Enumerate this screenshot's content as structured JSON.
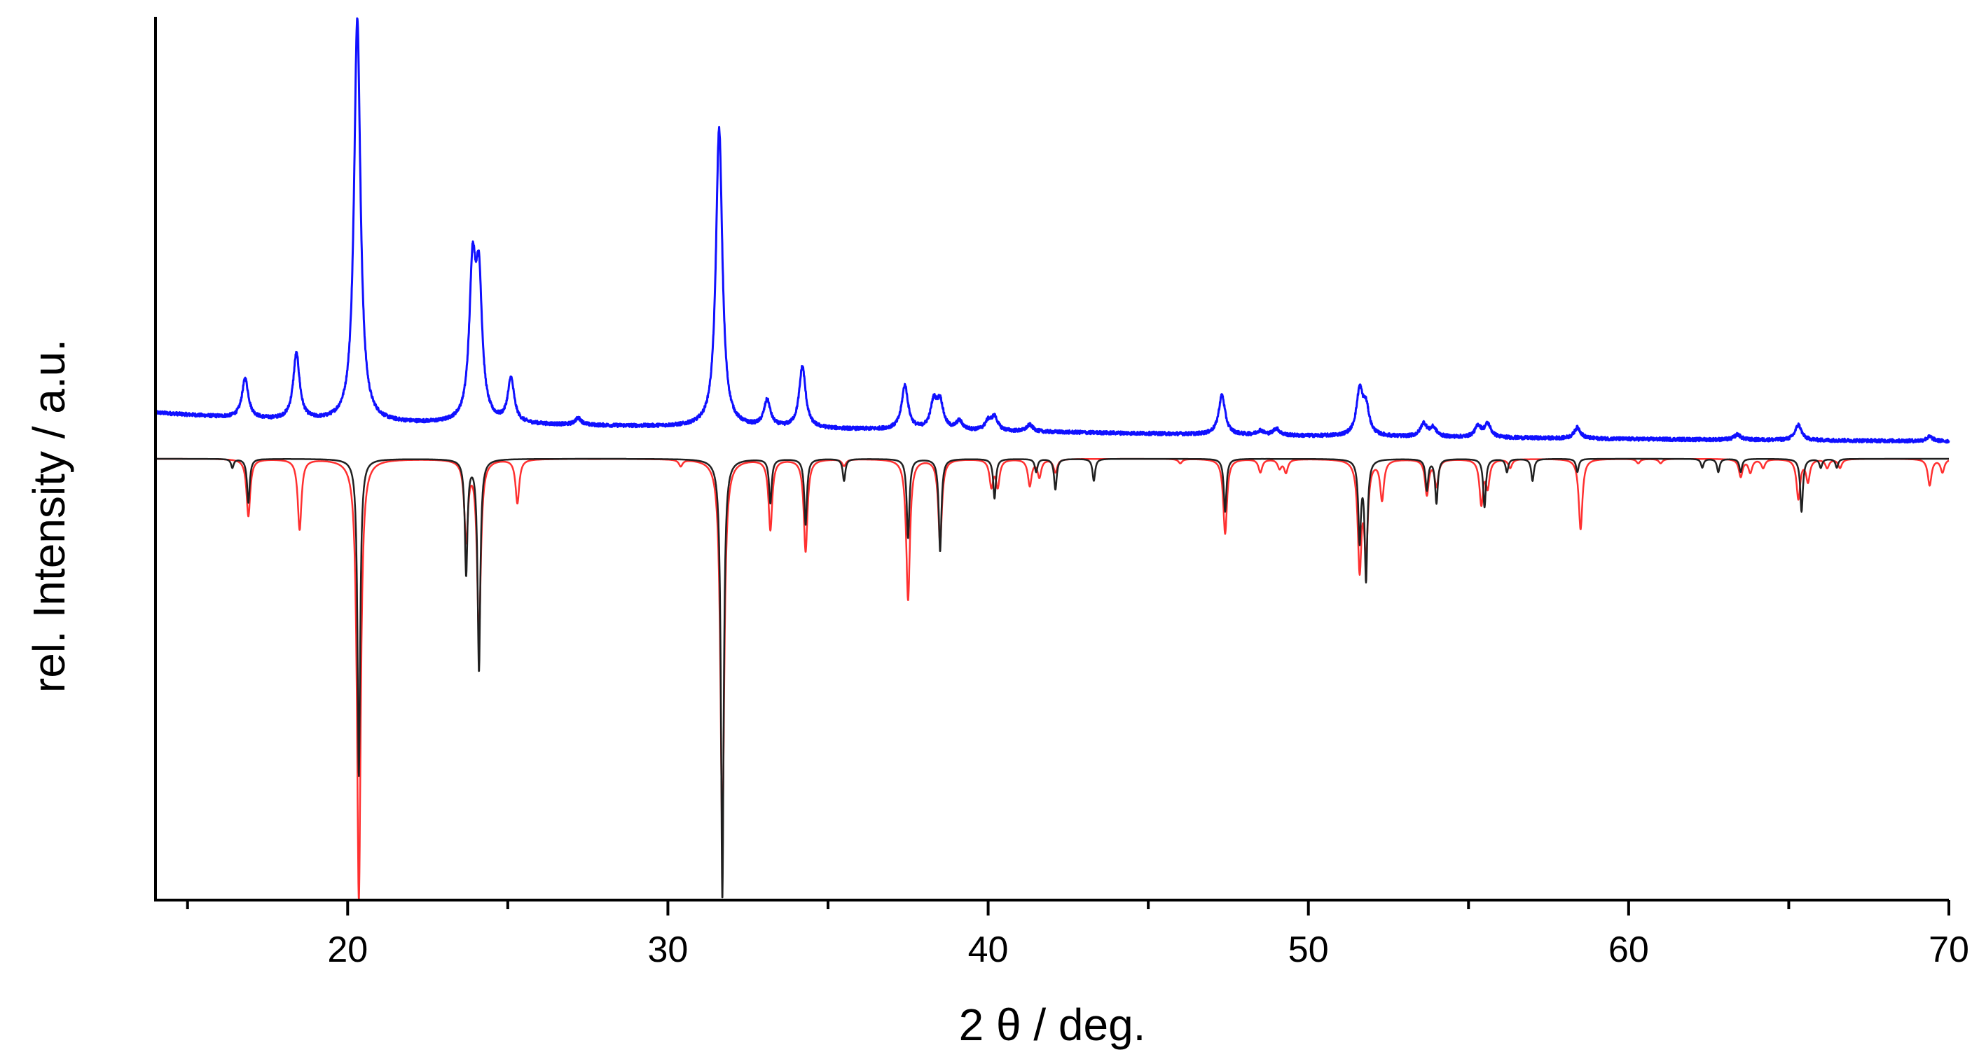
{
  "chart_data": {
    "type": "line",
    "xlabel": "2 θ / deg.",
    "ylabel": "rel. Intensity / a.u.",
    "xlim": [
      14,
      70
    ],
    "ylim": [
      -100,
      100
    ],
    "x_ticks": [
      20,
      30,
      40,
      50,
      60,
      70
    ],
    "x_minor_step": 5,
    "y_ticks": [],
    "grid": false,
    "legend": "none",
    "colors": {
      "measured": "#1010ff",
      "simulated_a": "#ff3030",
      "simulated_b": "#202020",
      "axis": "#000000"
    },
    "series": [
      {
        "line_color": "#1010ff",
        "baseline": [
          [
            14,
            10.5
          ],
          [
            17,
            9.0
          ],
          [
            20,
            8.2
          ],
          [
            25,
            7.8
          ],
          [
            30,
            7.3
          ],
          [
            40,
            6.3
          ],
          [
            50,
            5.2
          ],
          [
            60,
            4.5
          ],
          [
            70,
            4.0
          ]
        ],
        "peak_width": 0.12,
        "noise": 0.4,
        "peaks": [
          [
            16.8,
            9
          ],
          [
            18.4,
            15
          ],
          [
            20.3,
            92
          ],
          [
            23.9,
            33
          ],
          [
            24.1,
            30
          ],
          [
            25.1,
            10
          ],
          [
            27.2,
            1.5
          ],
          [
            31.6,
            68
          ],
          [
            33.1,
            6
          ],
          [
            34.2,
            14
          ],
          [
            37.4,
            10
          ],
          [
            38.3,
            6
          ],
          [
            38.5,
            6
          ],
          [
            39.1,
            2
          ],
          [
            40.0,
            2
          ],
          [
            40.2,
            3
          ],
          [
            41.3,
            1.5
          ],
          [
            47.3,
            9
          ],
          [
            48.5,
            1
          ],
          [
            49.0,
            1.5
          ],
          [
            51.6,
            10
          ],
          [
            51.8,
            6
          ],
          [
            53.6,
            3
          ],
          [
            53.9,
            2
          ],
          [
            55.3,
            2.5
          ],
          [
            55.6,
            3
          ],
          [
            58.4,
            2.5
          ],
          [
            63.4,
            1.2
          ],
          [
            65.3,
            3.5
          ],
          [
            69.4,
            1
          ]
        ]
      },
      {
        "line_color": "#ff3030",
        "baseline": [
          [
            14,
            0
          ],
          [
            70,
            0
          ]
        ],
        "peak_width": 0.07,
        "noise": 0,
        "peaks": [
          [
            16.9,
            -13
          ],
          [
            18.5,
            -16
          ],
          [
            20.35,
            -100
          ],
          [
            23.7,
            -18
          ],
          [
            24.1,
            -40
          ],
          [
            25.3,
            -10
          ],
          [
            30.4,
            -1.5
          ],
          [
            31.7,
            -86
          ],
          [
            33.2,
            -16
          ],
          [
            34.3,
            -21
          ],
          [
            35.5,
            -1.5
          ],
          [
            37.5,
            -32
          ],
          [
            38.5,
            -19
          ],
          [
            40.1,
            -6
          ],
          [
            40.3,
            -6
          ],
          [
            41.3,
            -6
          ],
          [
            41.6,
            -4
          ],
          [
            42.1,
            -3
          ],
          [
            46.0,
            -1
          ],
          [
            47.4,
            -17
          ],
          [
            48.5,
            -3
          ],
          [
            49.1,
            -2
          ],
          [
            49.3,
            -3
          ],
          [
            51.6,
            -24
          ],
          [
            51.8,
            -20
          ],
          [
            52.3,
            -9
          ],
          [
            53.7,
            -8
          ],
          [
            54.0,
            -6
          ],
          [
            55.4,
            -10
          ],
          [
            55.6,
            -6
          ],
          [
            56.3,
            -2
          ],
          [
            58.5,
            -16
          ],
          [
            60.3,
            -1
          ],
          [
            61.0,
            -1
          ],
          [
            63.5,
            -4
          ],
          [
            63.8,
            -3
          ],
          [
            64.2,
            -2
          ],
          [
            65.3,
            -9
          ],
          [
            65.6,
            -5
          ],
          [
            66.2,
            -2
          ],
          [
            66.6,
            -2
          ],
          [
            69.4,
            -6
          ],
          [
            69.8,
            -3
          ]
        ]
      },
      {
        "line_color": "#202020",
        "baseline": [
          [
            14,
            0
          ],
          [
            70,
            0
          ]
        ],
        "peak_width": 0.05,
        "noise": 0,
        "peaks": [
          [
            16.4,
            -2
          ],
          [
            16.9,
            -10
          ],
          [
            20.35,
            -72
          ],
          [
            23.7,
            -26
          ],
          [
            24.1,
            -48
          ],
          [
            31.7,
            -100
          ],
          [
            33.2,
            -10
          ],
          [
            34.3,
            -15
          ],
          [
            35.5,
            -5
          ],
          [
            37.5,
            -18
          ],
          [
            38.5,
            -21
          ],
          [
            40.2,
            -9
          ],
          [
            41.5,
            -3
          ],
          [
            42.1,
            -7
          ],
          [
            43.3,
            -5
          ],
          [
            47.4,
            -12
          ],
          [
            51.6,
            -18
          ],
          [
            51.8,
            -27
          ],
          [
            53.7,
            -7
          ],
          [
            54.0,
            -10
          ],
          [
            55.5,
            -11
          ],
          [
            56.2,
            -3
          ],
          [
            57.0,
            -5
          ],
          [
            58.4,
            -3
          ],
          [
            62.3,
            -2
          ],
          [
            62.8,
            -3
          ],
          [
            63.5,
            -3
          ],
          [
            65.4,
            -12
          ],
          [
            66.0,
            -2
          ],
          [
            66.5,
            -2
          ]
        ]
      }
    ]
  }
}
